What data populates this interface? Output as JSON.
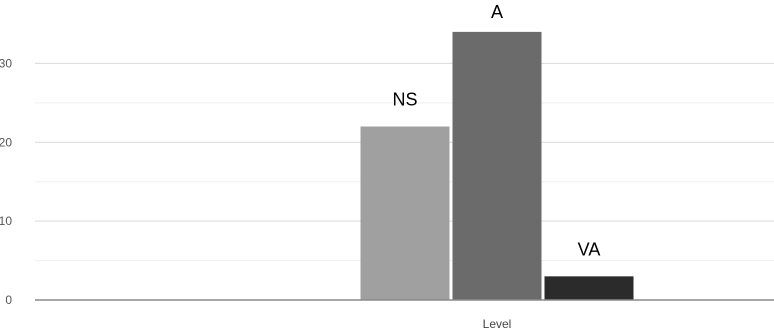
{
  "chart_data": {
    "type": "bar",
    "categories": [
      "Level"
    ],
    "series": [
      {
        "name": "NS",
        "values": [
          22
        ],
        "color": "#a0a0a0"
      },
      {
        "name": "A",
        "values": [
          34
        ],
        "color": "#6b6b6b"
      },
      {
        "name": "VA",
        "values": [
          3
        ],
        "color": "#2b2b2b"
      }
    ],
    "ylim": [
      0,
      35
    ],
    "yticks": [
      0,
      10,
      20,
      30
    ],
    "minor_gridlines": [
      5,
      15,
      25
    ],
    "grid": true,
    "legend": "none; series names shown as labels above bars",
    "title": "",
    "xlabel": "",
    "ylabel": ""
  }
}
